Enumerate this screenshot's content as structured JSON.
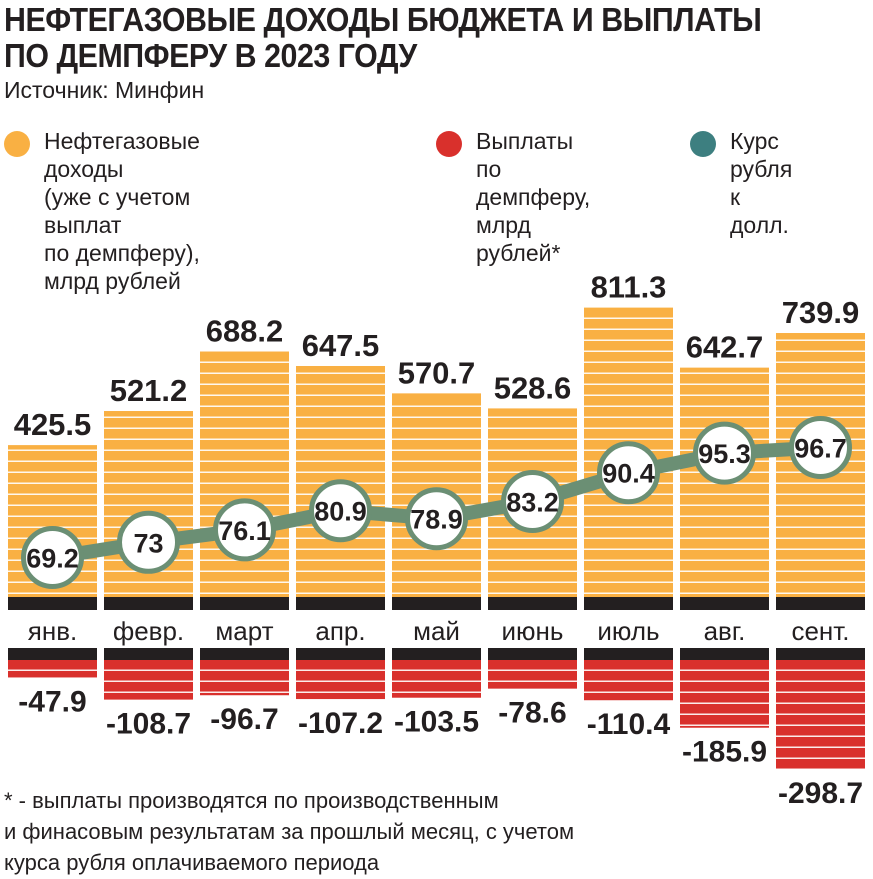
{
  "title": "НЕФТЕГАЗОВЫЕ ДОХОДЫ БЮДЖЕТА И ВЫПЛАТЫ\nПО ДЕМПФЕРУ В 2023 ГОДУ",
  "source": "Источник: Минфин",
  "legend": [
    {
      "label": "Нефтегазовые доходы\n(уже с учетом выплат\nпо демпферу), млрд рублей",
      "color": "#f9b043",
      "icon": "orange-dot"
    },
    {
      "label": "Выплаты\nпо демпферу,\nмлрд рублей*",
      "color": "#d9302c",
      "icon": "red-dot"
    },
    {
      "label": "Курс рубля\nк долл.",
      "color": "#3d7f80",
      "icon": "teal-dot"
    }
  ],
  "footnote": "* - выплаты производятся по производственным\nи финасовым результатам за прошлый месяц, с учетом\nкурса рубля оплачиваемого периода",
  "colors": {
    "income": "#f9b043",
    "payment": "#d9302c",
    "rate_line": "#6b8f74",
    "axis": "#231f20"
  },
  "chart_data": {
    "type": "bar",
    "categories": [
      "янв.",
      "февр.",
      "март",
      "апр.",
      "май",
      "июнь",
      "июль",
      "авг.",
      "сент."
    ],
    "series": [
      {
        "name": "Нефтегазовые доходы (уже с учетом выплат по демпферу), млрд рублей",
        "values": [
          425.5,
          521.2,
          688.2,
          647.5,
          570.7,
          528.6,
          811.3,
          642.7,
          739.9
        ],
        "labels": [
          "425.5",
          "521.2",
          "688.2",
          "647.5",
          "570.7",
          "528.6",
          "811.3",
          "642.7",
          "739.9"
        ]
      },
      {
        "name": "Выплаты по демпферу, млрд рублей*",
        "values": [
          -47.9,
          -108.7,
          -96.7,
          -107.2,
          -103.5,
          -78.6,
          -110.4,
          -185.9,
          -298.7
        ],
        "labels": [
          "-47.9",
          "-108.7",
          "-96.7",
          "-107.2",
          "-103.5",
          "-78.6",
          "-110.4",
          "-185.9",
          "-298.7"
        ]
      },
      {
        "name": "Курс рубля к долл.",
        "values": [
          69.2,
          73,
          76.1,
          80.9,
          78.9,
          83.2,
          90.4,
          95.3,
          96.7
        ],
        "labels": [
          "69.2",
          "73",
          "76.1",
          "80.9",
          "78.9",
          "83.2",
          "90.4",
          "95.3",
          "96.7"
        ]
      }
    ],
    "grid": false,
    "legend_position": "top"
  }
}
